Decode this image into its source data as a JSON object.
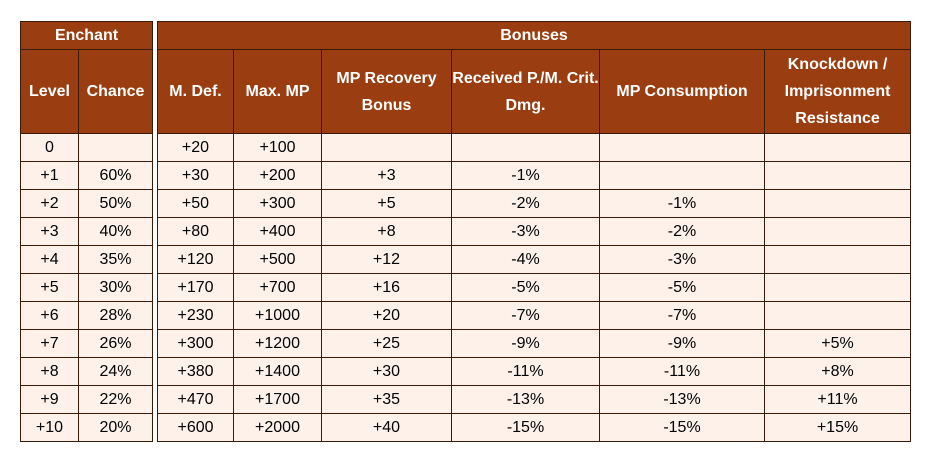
{
  "enchant": {
    "header": "Enchant",
    "columns": [
      "Level",
      "Chance"
    ],
    "rows": [
      [
        "0",
        ""
      ],
      [
        "+1",
        "60%"
      ],
      [
        "+2",
        "50%"
      ],
      [
        "+3",
        "40%"
      ],
      [
        "+4",
        "35%"
      ],
      [
        "+5",
        "30%"
      ],
      [
        "+6",
        "28%"
      ],
      [
        "+7",
        "26%"
      ],
      [
        "+8",
        "24%"
      ],
      [
        "+9",
        "22%"
      ],
      [
        "+10",
        "20%"
      ]
    ]
  },
  "bonuses": {
    "header": "Bonuses",
    "columns": [
      "M. Def.",
      "Max. MP",
      "MP Recovery Bonus",
      "Received P./M. Crit. Dmg.",
      "MP Consumption",
      "Knockdown / Imprisonment Resistance"
    ],
    "rows": [
      [
        "+20",
        "+100",
        "",
        "",
        "",
        ""
      ],
      [
        "+30",
        "+200",
        "+3",
        "-1%",
        "",
        ""
      ],
      [
        "+50",
        "+300",
        "+5",
        "-2%",
        "-1%",
        ""
      ],
      [
        "+80",
        "+400",
        "+8",
        "-3%",
        "-2%",
        ""
      ],
      [
        "+120",
        "+500",
        "+12",
        "-4%",
        "-3%",
        ""
      ],
      [
        "+170",
        "+700",
        "+16",
        "-5%",
        "-5%",
        ""
      ],
      [
        "+230",
        "+1000",
        "+20",
        "-7%",
        "-7%",
        ""
      ],
      [
        "+300",
        "+1200",
        "+25",
        "-9%",
        "-9%",
        "+5%"
      ],
      [
        "+380",
        "+1400",
        "+30",
        "-11%",
        "-11%",
        "+8%"
      ],
      [
        "+470",
        "+1700",
        "+35",
        "-13%",
        "-13%",
        "+11%"
      ],
      [
        "+600",
        "+2000",
        "+40",
        "-15%",
        "-15%",
        "+15%"
      ]
    ]
  },
  "colors": {
    "header_bg": "#9a3d10",
    "cell_bg": "#fdf1ea",
    "border": "#3b1a08"
  }
}
